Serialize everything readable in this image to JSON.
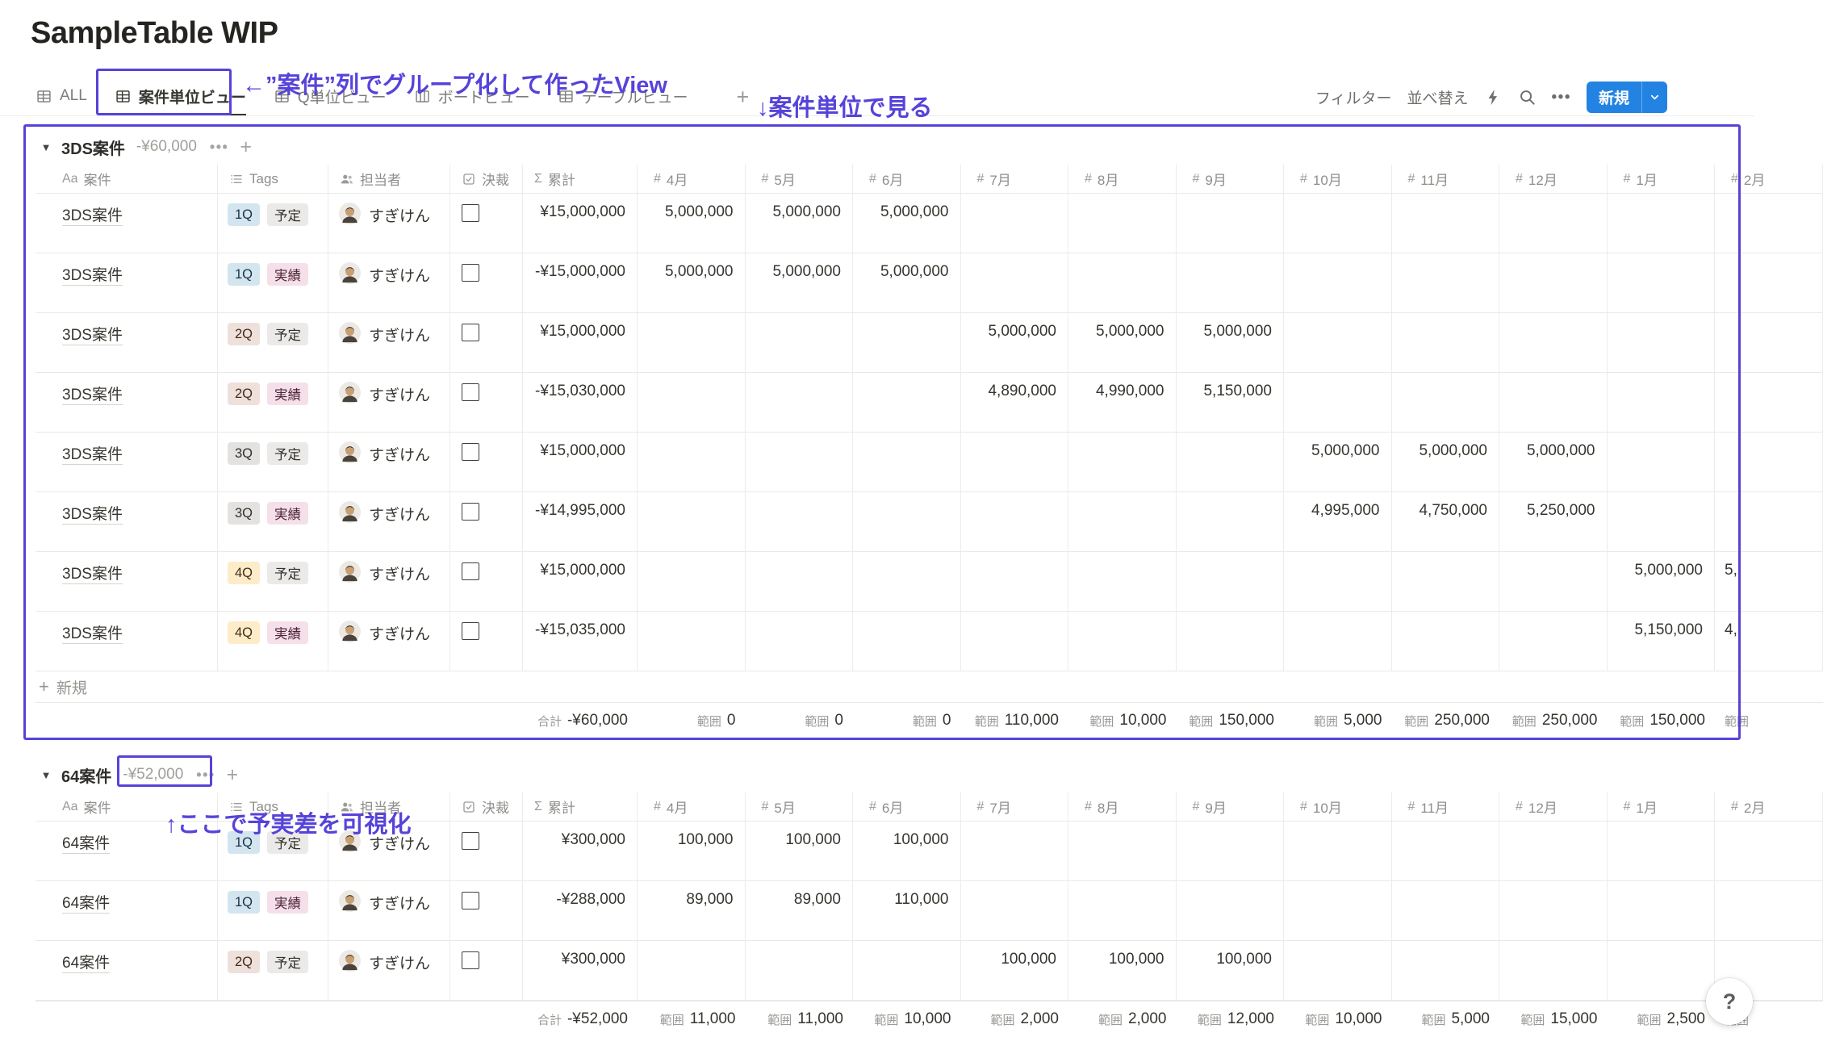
{
  "page": {
    "title": "SampleTable WIP",
    "help_label": "?"
  },
  "tabs": [
    {
      "id": "all",
      "label": "ALL",
      "icon": "table",
      "active": false
    },
    {
      "id": "anken-unit-view",
      "label": "案件単位ビュー",
      "icon": "table",
      "active": true
    },
    {
      "id": "q-unit-view",
      "label": "Q単位ビュー",
      "icon": "table",
      "active": false
    },
    {
      "id": "board-view",
      "label": "ボードビュー",
      "icon": "board",
      "active": false
    },
    {
      "id": "table-view",
      "label": "テーブルビュー",
      "icon": "table",
      "active": false
    }
  ],
  "tabs_add_label": "+",
  "toolbar": {
    "filter_label": "フィルター",
    "sort_label": "並べ替え",
    "more_label": "•••",
    "new_label": "新規",
    "new_button_color": "#2383e2"
  },
  "annotations": {
    "color": "#5643d9",
    "tab_note": "←”案件”列でグループ化して作ったView",
    "view_note": "↓案件単位で見る",
    "group_note": "↑ここで予実差を可視化"
  },
  "table": {
    "fixed_columns": [
      {
        "key": "title",
        "label": "案件",
        "icon": "Aa"
      },
      {
        "key": "tags",
        "label": "Tags",
        "icon": "list"
      },
      {
        "key": "person",
        "label": "担当者",
        "icon": "people"
      },
      {
        "key": "check",
        "label": "決裁",
        "icon": "checkbox"
      },
      {
        "key": "sum",
        "label": "累計",
        "icon": "sigma"
      }
    ],
    "month_columns": [
      "4月",
      "5月",
      "6月",
      "7月",
      "8月",
      "9月",
      "10月",
      "11月",
      "12月",
      "1月",
      "2月"
    ],
    "month_icon": "#",
    "new_row_label": "新規",
    "total_label": "合計",
    "range_label": "範囲"
  },
  "tag_colors": {
    "1Q": {
      "bg": "#d3e5ef",
      "fg": "#183347"
    },
    "2Q": {
      "bg": "#eee0da",
      "fg": "#442a1e"
    },
    "3Q": {
      "bg": "#e3e2e0",
      "fg": "#32302c"
    },
    "4Q": {
      "bg": "#fdecc8",
      "fg": "#402c1b"
    },
    "予定": {
      "bg": "#eceae8",
      "fg": "#32302c"
    },
    "実績": {
      "bg": "#f5e0e9",
      "fg": "#4c2337"
    }
  },
  "groups": [
    {
      "name": "3DS案件",
      "total": "-¥60,000",
      "show_new_row": true,
      "rows": [
        {
          "title": "3DS案件",
          "tags": [
            "1Q",
            "予定"
          ],
          "person": "すぎけん",
          "checked": false,
          "sum": "¥15,000,000",
          "months": {
            "4月": "5,000,000",
            "5月": "5,000,000",
            "6月": "5,000,000"
          }
        },
        {
          "title": "3DS案件",
          "tags": [
            "1Q",
            "実績"
          ],
          "person": "すぎけん",
          "checked": false,
          "sum": "-¥15,000,000",
          "months": {
            "4月": "5,000,000",
            "5月": "5,000,000",
            "6月": "5,000,000"
          }
        },
        {
          "title": "3DS案件",
          "tags": [
            "2Q",
            "予定"
          ],
          "person": "すぎけん",
          "checked": false,
          "sum": "¥15,000,000",
          "months": {
            "7月": "5,000,000",
            "8月": "5,000,000",
            "9月": "5,000,000"
          }
        },
        {
          "title": "3DS案件",
          "tags": [
            "2Q",
            "実績"
          ],
          "person": "すぎけん",
          "checked": false,
          "sum": "-¥15,030,000",
          "months": {
            "7月": "4,890,000",
            "8月": "4,990,000",
            "9月": "5,150,000"
          }
        },
        {
          "title": "3DS案件",
          "tags": [
            "3Q",
            "予定"
          ],
          "person": "すぎけん",
          "checked": false,
          "sum": "¥15,000,000",
          "months": {
            "10月": "5,000,000",
            "11月": "5,000,000",
            "12月": "5,000,000"
          }
        },
        {
          "title": "3DS案件",
          "tags": [
            "3Q",
            "実績"
          ],
          "person": "すぎけん",
          "checked": false,
          "sum": "-¥14,995,000",
          "months": {
            "10月": "4,995,000",
            "11月": "4,750,000",
            "12月": "5,250,000"
          }
        },
        {
          "title": "3DS案件",
          "tags": [
            "4Q",
            "予定"
          ],
          "person": "すぎけん",
          "checked": false,
          "sum": "¥15,000,000",
          "months": {
            "1月": "5,000,000",
            "2月": "5,"
          }
        },
        {
          "title": "3DS案件",
          "tags": [
            "4Q",
            "実績"
          ],
          "person": "すぎけん",
          "checked": false,
          "sum": "-¥15,035,000",
          "months": {
            "1月": "5,150,000",
            "2月": "4,"
          }
        }
      ],
      "footer_total": "-¥60,000",
      "footer_ranges": {
        "4月": "0",
        "5月": "0",
        "6月": "0",
        "7月": "110,000",
        "8月": "10,000",
        "9月": "150,000",
        "10月": "5,000",
        "11月": "250,000",
        "12月": "250,000",
        "1月": "150,000",
        "2月": ""
      }
    },
    {
      "name": "64案件",
      "total": "-¥52,000",
      "show_new_row": false,
      "rows": [
        {
          "title": "64案件",
          "tags": [
            "1Q",
            "予定"
          ],
          "person": "すぎけん",
          "checked": false,
          "sum": "¥300,000",
          "months": {
            "4月": "100,000",
            "5月": "100,000",
            "6月": "100,000"
          }
        },
        {
          "title": "64案件",
          "tags": [
            "1Q",
            "実績"
          ],
          "person": "すぎけん",
          "checked": false,
          "sum": "-¥288,000",
          "months": {
            "4月": "89,000",
            "5月": "89,000",
            "6月": "110,000"
          }
        },
        {
          "title": "64案件",
          "tags": [
            "2Q",
            "予定"
          ],
          "person": "すぎけん",
          "checked": false,
          "sum": "¥300,000",
          "months": {
            "7月": "100,000",
            "8月": "100,000",
            "9月": "100,000"
          }
        }
      ],
      "footer_total": "-¥52,000",
      "footer_ranges": {
        "4月": "11,000",
        "5月": "11,000",
        "6月": "10,000",
        "7月": "2,000",
        "8月": "2,000",
        "9月": "12,000",
        "10月": "10,000",
        "11月": "5,000",
        "12月": "15,000",
        "1月": "2,500",
        "2月": ""
      }
    }
  ]
}
